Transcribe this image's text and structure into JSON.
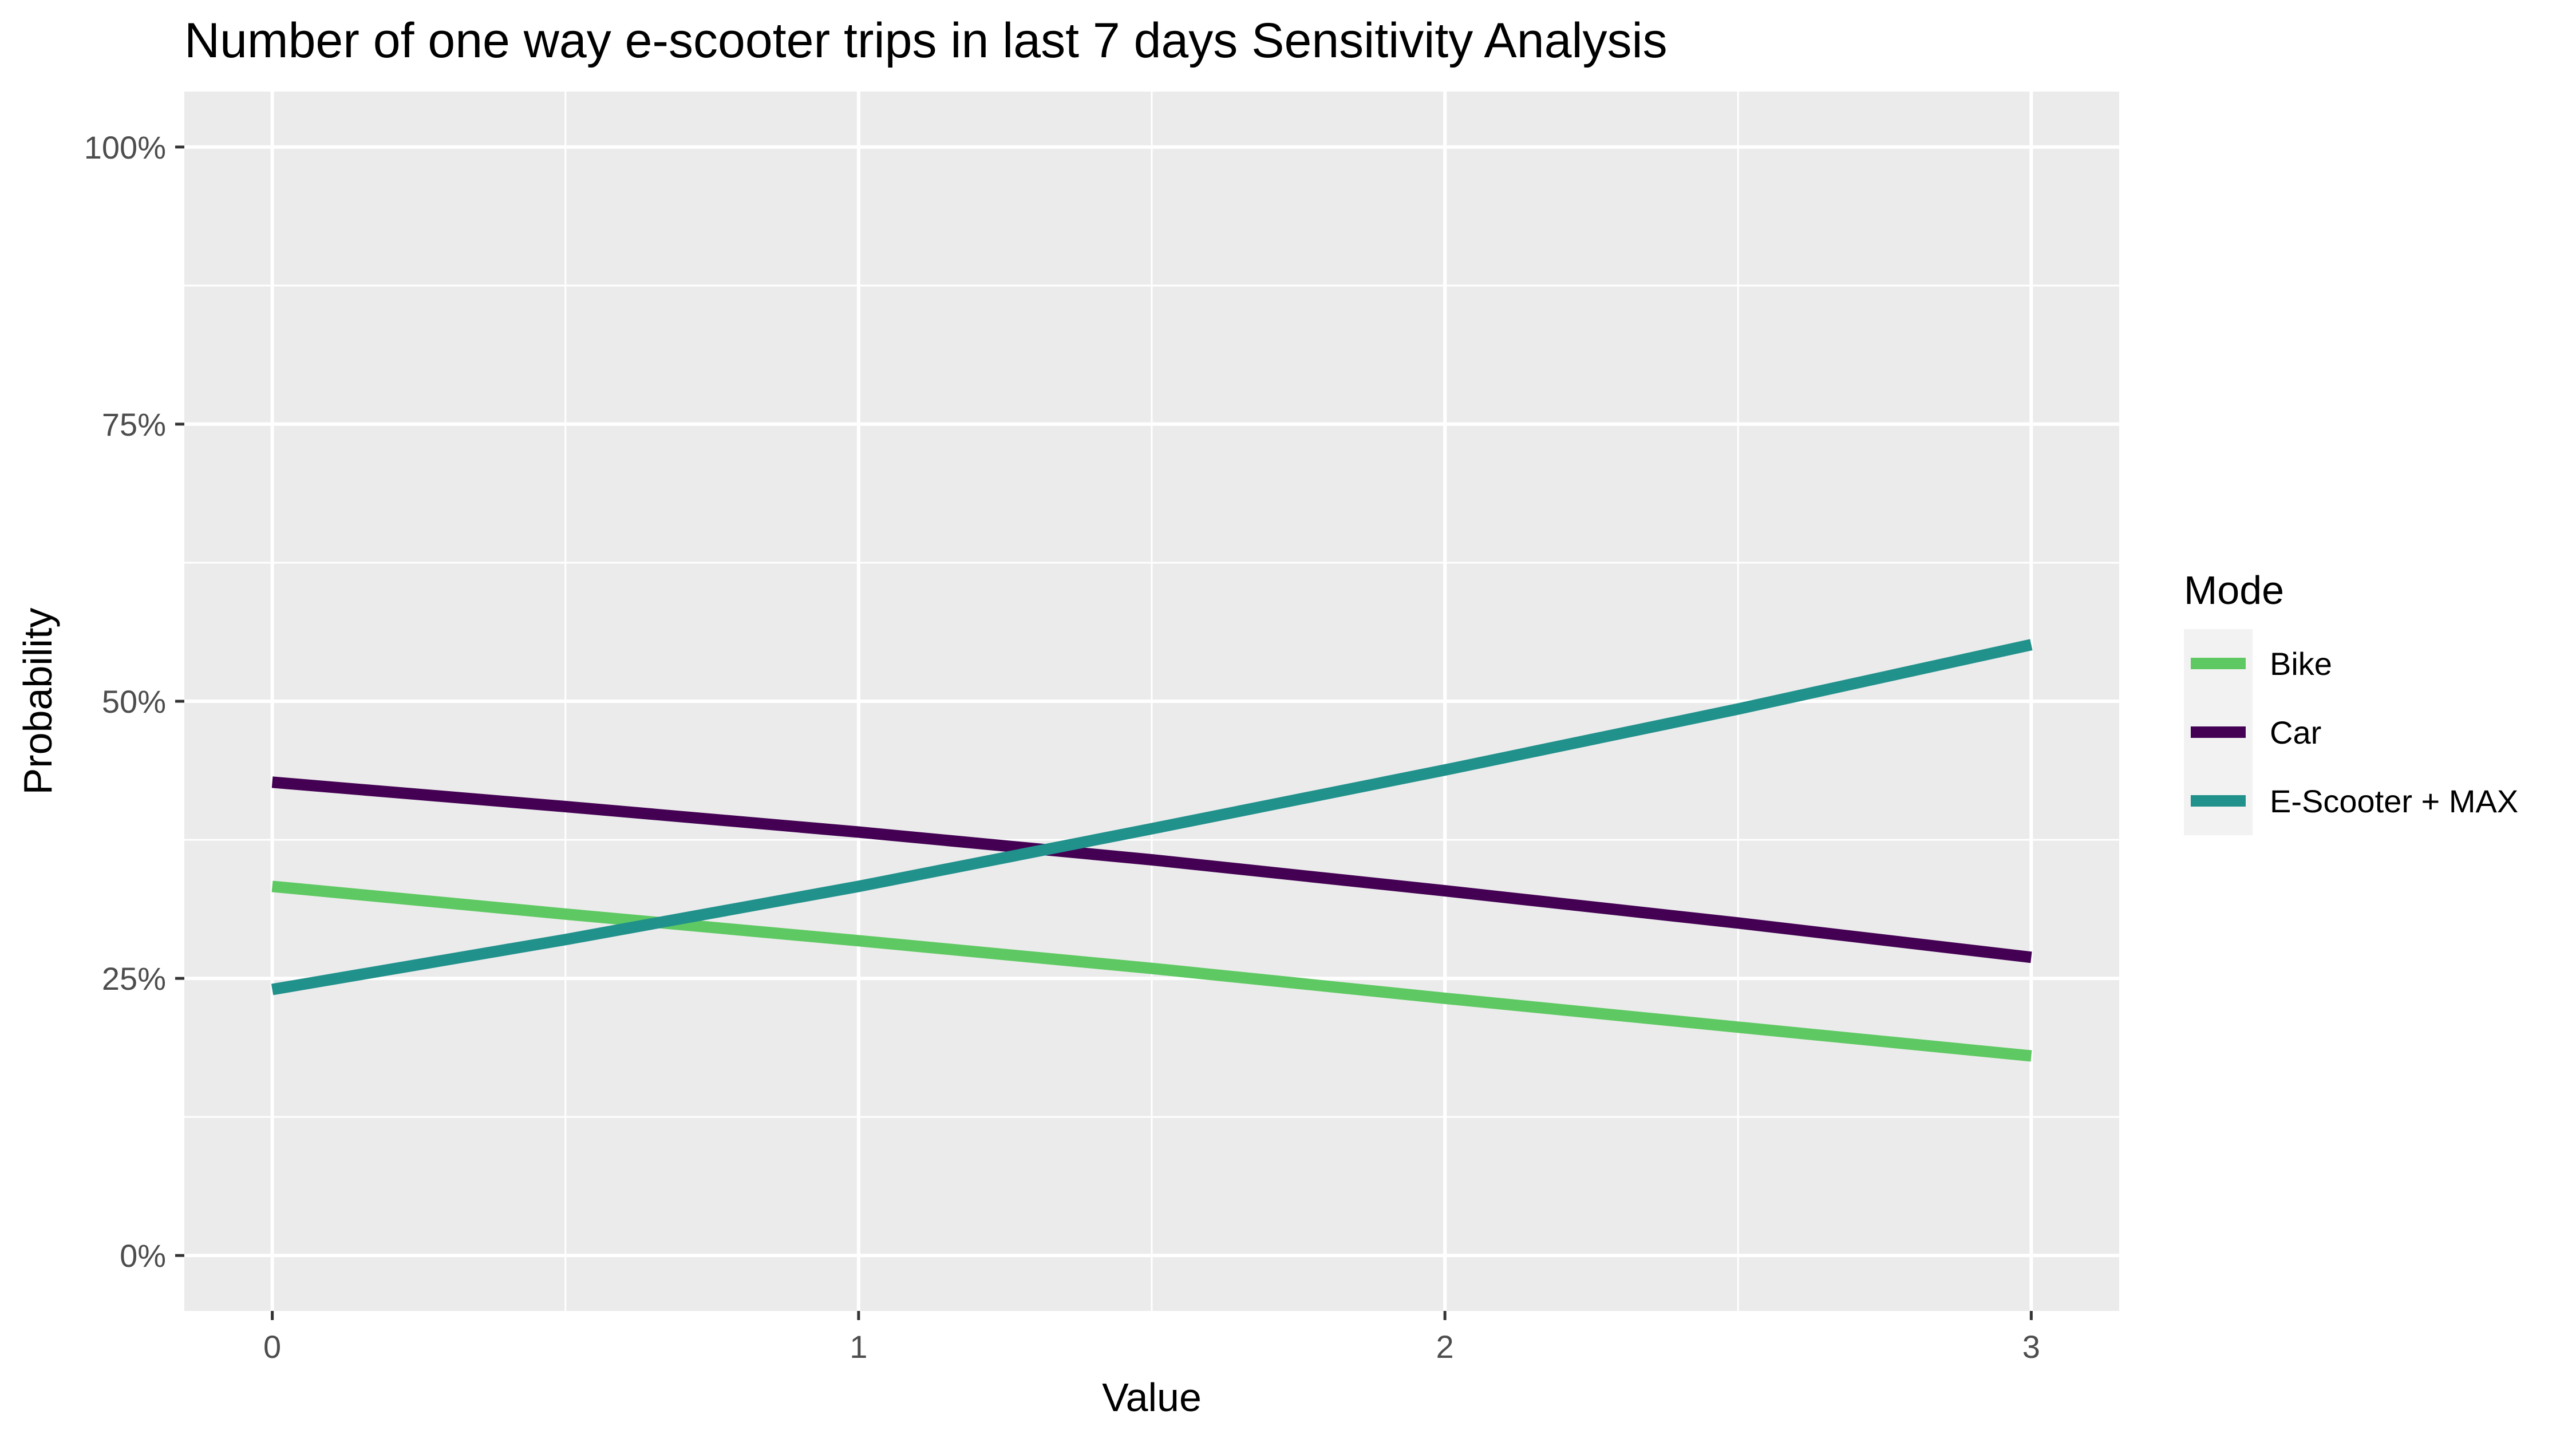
{
  "chart_data": {
    "type": "line",
    "title": "Number of one way e-scooter trips in last 7 days Sensitivity Analysis",
    "xlabel": "Value",
    "ylabel": "Probability",
    "xlim": [
      -0.15,
      3.15
    ],
    "ylim": [
      -0.05,
      1.05
    ],
    "x_ticks": [
      0,
      1,
      2,
      3
    ],
    "x_tick_labels": [
      "0",
      "1",
      "2",
      "3"
    ],
    "y_ticks": [
      0,
      0.25,
      0.5,
      0.75,
      1.0
    ],
    "y_tick_labels": [
      "0%",
      "25%",
      "50%",
      "75%",
      "100%"
    ],
    "grid": true,
    "legend": {
      "title": "Mode",
      "position": "right",
      "entries": [
        "Bike",
        "Car",
        "E-Scooter + MAX"
      ]
    },
    "series": [
      {
        "name": "Bike",
        "color": "#5ec962",
        "x": [
          0,
          0.5,
          1,
          1.5,
          2,
          2.5,
          3
        ],
        "y": [
          0.333,
          0.308,
          0.284,
          0.259,
          0.232,
          0.206,
          0.18
        ]
      },
      {
        "name": "Car",
        "color": "#440154",
        "x": [
          0,
          0.5,
          1,
          1.5,
          2,
          2.5,
          3
        ],
        "y": [
          0.427,
          0.405,
          0.382,
          0.357,
          0.329,
          0.3,
          0.269
        ]
      },
      {
        "name": "E-Scooter + MAX",
        "color": "#21918c",
        "x": [
          0,
          0.5,
          1,
          1.5,
          2,
          2.5,
          3
        ],
        "y": [
          0.24,
          0.285,
          0.333,
          0.385,
          0.438,
          0.493,
          0.551
        ]
      }
    ],
    "panel_background": "#ebebeb",
    "grid_color": "#ffffff"
  }
}
